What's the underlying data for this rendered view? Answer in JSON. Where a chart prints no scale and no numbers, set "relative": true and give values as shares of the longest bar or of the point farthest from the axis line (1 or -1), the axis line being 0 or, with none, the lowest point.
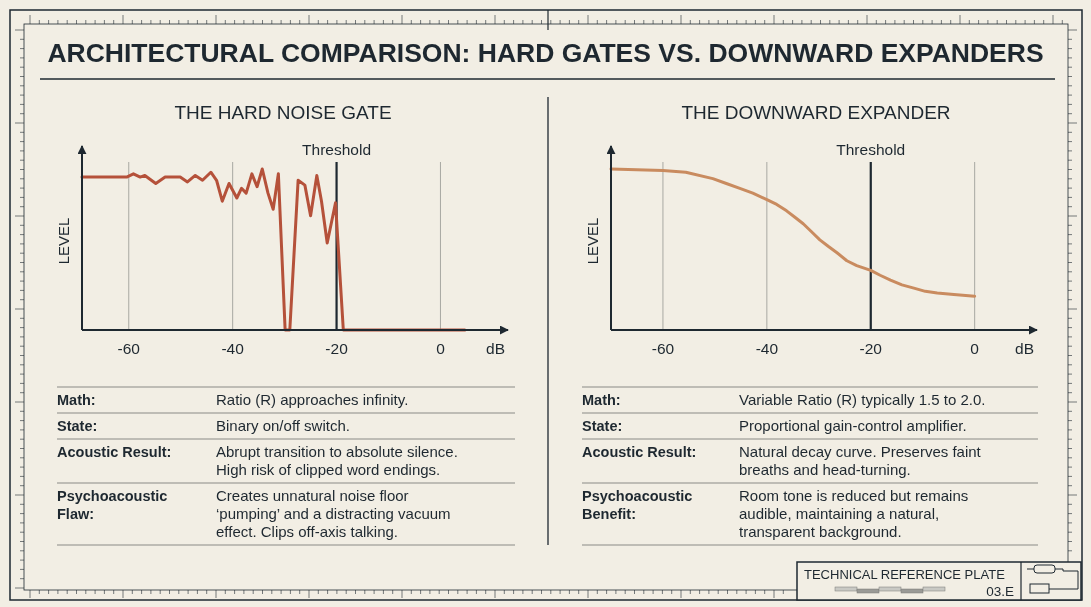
{
  "chart_data": [
    {
      "type": "line",
      "title": "ARCHITECTURAL COMPARISON: HARD GATES VS. DOWNWARD EXPANDERS",
      "subtitle": "THE HARD NOISE GATE",
      "xlabel": "dB",
      "ylabel": "LEVEL",
      "relative": true,
      "xlim": [
        -69,
        13
      ],
      "xticks": [
        -60,
        -40,
        -20,
        0
      ],
      "grid": "x",
      "series": [
        {
          "color": "#b5513a",
          "x": [
            -69,
            -60.4,
            -59.1,
            -57.8,
            -56.9,
            -54.8,
            -53,
            -50.1,
            -48.7,
            -47.2,
            -45.8,
            -44.2,
            -43.1,
            -42,
            -40.7,
            -39.2,
            -38.3,
            -37.4,
            -36.3,
            -35.3,
            -34.3,
            -33.2,
            -32.2,
            -31.2,
            -29.9,
            -29,
            -27.4,
            -26.1,
            -25,
            -23.8,
            -22.9,
            -21.8,
            -20.2,
            -18.7,
            4.7
          ],
          "values": [
            0.95,
            0.95,
            0.97,
            0.95,
            0.96,
            0.91,
            0.95,
            0.95,
            0.92,
            0.96,
            0.93,
            0.98,
            0.93,
            0.8,
            0.91,
            0.82,
            0.88,
            0.85,
            0.97,
            0.89,
            1,
            0.85,
            0.75,
            0.97,
            0,
            0,
            0.93,
            0.9,
            0.71,
            0.96,
            0.8,
            0.54,
            0.79,
            0,
            0
          ]
        }
      ],
      "ref_lines": [
        {
          "axis": "x",
          "value": -20,
          "label": "Threshold",
          "color": "#1e2830"
        }
      ],
      "annotations": [
        "Math:",
        "Ratio (R) approaches infinity.",
        "State:",
        "Binary on/off switch.",
        "Acoustic Result:",
        "Abrupt transition to absolute silence.\nHigh risk of clipped word endings.",
        "Psychoacoustic\nFlaw:",
        "Creates unnatural noise floor\n‘pumping’ and a distracting vacuum\neffect. Clips off-axis talking."
      ]
    },
    {
      "type": "line",
      "subtitle": "THE DOWNWARD EXPANDER",
      "xlabel": "dB",
      "ylabel": "LEVEL",
      "relative": true,
      "xlim": [
        -70,
        12
      ],
      "xticks": [
        -60,
        -40,
        -20,
        0
      ],
      "grid": "x",
      "series": [
        {
          "color": "#c98b5f",
          "x": [
            -70,
            -60,
            -55.6,
            -50.4,
            -47.8,
            -45.2,
            -42.7,
            -40,
            -38.1,
            -36.2,
            -34.6,
            -33,
            -31.4,
            -29.8,
            -28.2,
            -26.5,
            -24.6,
            -22.7,
            -20,
            -18.2,
            -16.2,
            -14,
            -11.7,
            -9.5,
            -7.2,
            -4,
            0
          ],
          "values": [
            1,
            0.99,
            0.98,
            0.94,
            0.91,
            0.88,
            0.85,
            0.81,
            0.78,
            0.74,
            0.7,
            0.66,
            0.61,
            0.56,
            0.52,
            0.48,
            0.43,
            0.4,
            0.37,
            0.34,
            0.31,
            0.28,
            0.26,
            0.24,
            0.23,
            0.22,
            0.21
          ]
        }
      ],
      "ref_lines": [
        {
          "axis": "x",
          "value": -20,
          "label": "Threshold",
          "color": "#1e2830"
        }
      ],
      "annotations": [
        "Math:",
        "Variable Ratio (R) typically 1.5 to 2.0.",
        "State:",
        "Proportional gain-control amplifier.",
        "Acoustic Result:",
        "Natural decay curve. Preserves faint\nbreaths and head-turning.",
        "Psychoacoustic\nBenefit:",
        "Room tone is reduced but remains\naudible, maintaining a natural,\ntransparent background.",
        "TECHNICAL REFERENCE PLATE",
        "03.E"
      ]
    }
  ]
}
